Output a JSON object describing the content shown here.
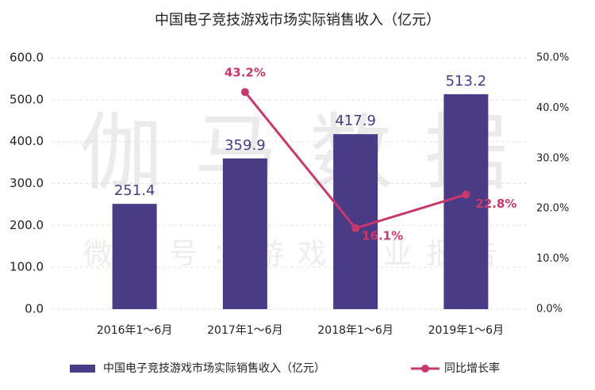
{
  "chart_data": {
    "type": "bar-line",
    "title": "中国电子竞技游戏市场实际销售收入（亿元）",
    "watermark": [
      "伽马数据",
      "微信号：游戏产业报告"
    ],
    "categories": [
      "2016年1～6月",
      "2017年1～6月",
      "2018年1～6月",
      "2019年1～6月"
    ],
    "series": [
      {
        "name": "中国电子竞技游戏市场实际销售收入（亿元）",
        "type": "bar",
        "color": "#4b3b87",
        "values": [
          251.4,
          359.9,
          417.9,
          513.2
        ]
      },
      {
        "name": "同比增长率",
        "type": "line",
        "axis": "y2",
        "color": "#c9386c",
        "values": [
          null,
          43.2,
          16.1,
          22.8
        ],
        "value_labels": [
          null,
          "43.2%",
          "16.1%",
          "22.8%"
        ]
      }
    ],
    "ylim": [
      0,
      600
    ],
    "yticks": [
      {
        "value": 0,
        "label": "0.0"
      },
      {
        "value": 100,
        "label": "100.0"
      },
      {
        "value": 200,
        "label": "200.0"
      },
      {
        "value": 300,
        "label": "300.0"
      },
      {
        "value": 400,
        "label": "400.0"
      },
      {
        "value": 500,
        "label": "500.0"
      },
      {
        "value": 600,
        "label": "600.0"
      }
    ],
    "y2lim": [
      0,
      50
    ],
    "y2ticks": [
      {
        "value": 0,
        "label": "0.0%"
      },
      {
        "value": 10,
        "label": "10.0%"
      },
      {
        "value": 20,
        "label": "20.0%"
      },
      {
        "value": 30,
        "label": "30.0%"
      },
      {
        "value": 40,
        "label": "40.0%"
      },
      {
        "value": 50,
        "label": "50.0%"
      }
    ],
    "grid": true
  }
}
